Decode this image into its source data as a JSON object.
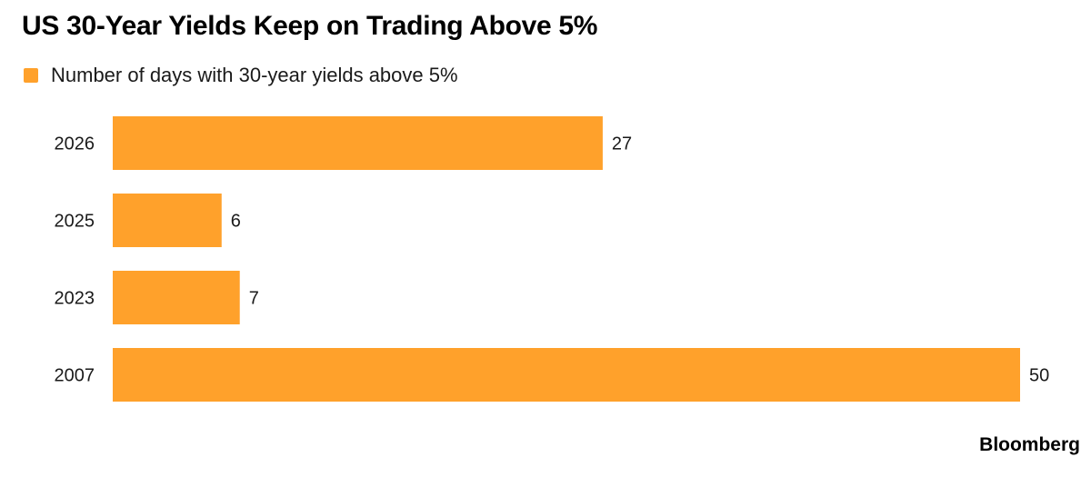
{
  "title": "US 30-Year Yields Keep on Trading Above 5%",
  "legend": {
    "label": "Number of days with 30-year yields above 5%",
    "color": "#ffa12b"
  },
  "source": "Bloomberg",
  "chart_data": {
    "type": "bar",
    "orientation": "horizontal",
    "categories": [
      "2026",
      "2025",
      "2023",
      "2007"
    ],
    "series": [
      {
        "name": "Number of days with 30-year yields above 5%",
        "values": [
          27,
          6,
          7,
          50
        ],
        "color": "#ffa12b"
      }
    ],
    "data_labels": [
      "27",
      "6",
      "7",
      "50"
    ],
    "xlim": [
      0,
      50
    ],
    "grid": false,
    "legend_position": "top-left"
  }
}
